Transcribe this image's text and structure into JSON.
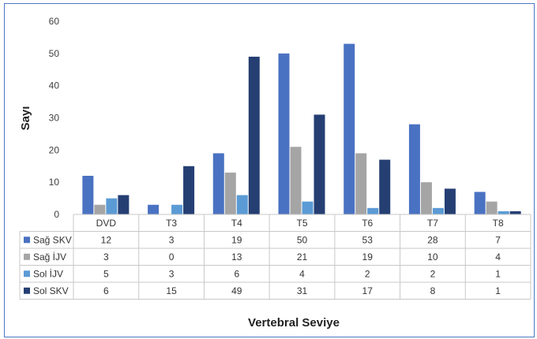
{
  "chart_data": {
    "type": "bar",
    "title": "",
    "ylabel": "Sayı",
    "xlabel": "Vertebral Seviye",
    "ylim": [
      0,
      60
    ],
    "yticks": [
      0,
      10,
      20,
      30,
      40,
      50,
      60
    ],
    "grid": false,
    "legend": "data table rows at bottom",
    "categories": [
      "DVD",
      "T3",
      "T4",
      "T5",
      "T6",
      "T7",
      "T8"
    ],
    "series": [
      {
        "name": "Sağ SKV",
        "color": "#4a72c2",
        "values": [
          12,
          3,
          19,
          50,
          53,
          28,
          7
        ]
      },
      {
        "name": "Sağ İJV",
        "color": "#a5a5a5",
        "values": [
          3,
          0,
          13,
          21,
          19,
          10,
          4
        ]
      },
      {
        "name": "Sol İJV",
        "color": "#5b9bd5",
        "values": [
          5,
          3,
          6,
          4,
          2,
          2,
          1
        ]
      },
      {
        "name": "Sol SKV",
        "color": "#253f73",
        "values": [
          6,
          15,
          49,
          31,
          17,
          8,
          1
        ]
      }
    ]
  }
}
